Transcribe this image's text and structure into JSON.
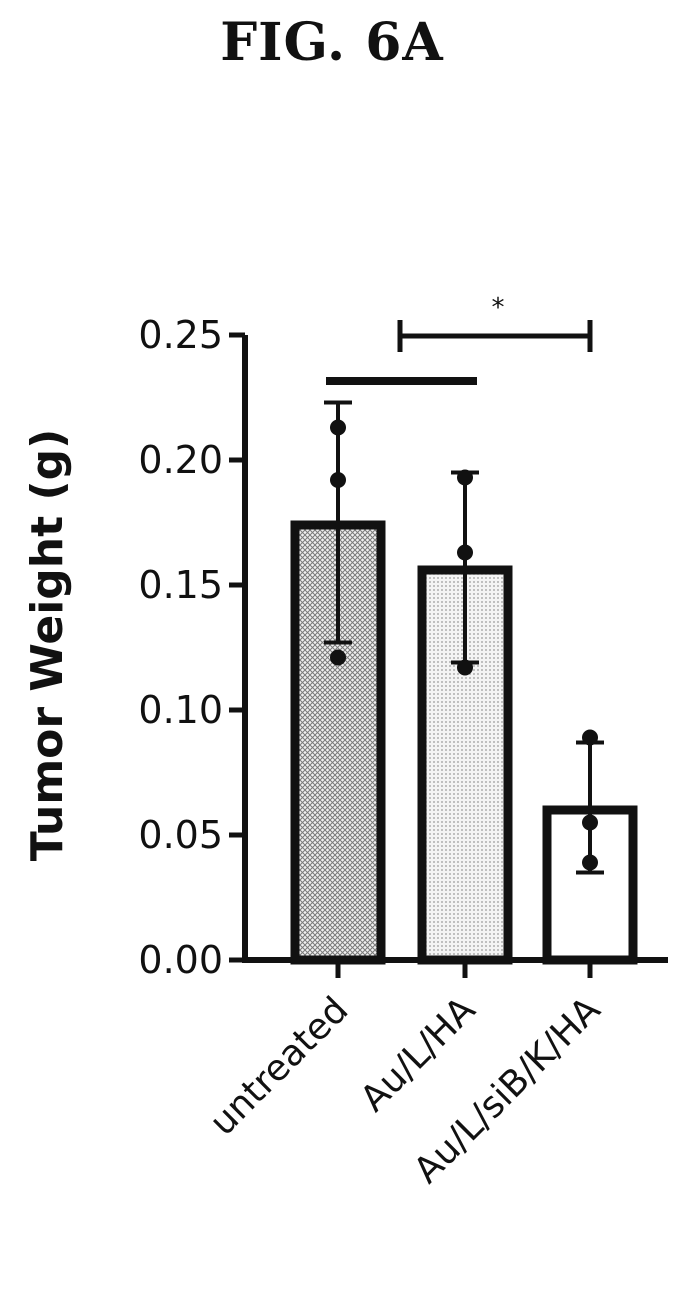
{
  "figure": {
    "title": "FIG. 6A"
  },
  "chart_data": {
    "type": "bar",
    "title": "",
    "xlabel": "",
    "ylabel": "Tumor Weight (g)",
    "ylim": [
      0,
      0.25
    ],
    "yticks": [
      "0.00",
      "0.05",
      "0.10",
      "0.15",
      "0.20",
      "0.25"
    ],
    "grid": false,
    "legend": "none",
    "categories": [
      "untreated",
      "Au/L/HA",
      "Au/L/siB/K/HA"
    ],
    "values": [
      0.174,
      0.156,
      0.06
    ],
    "error": [
      {
        "low": 0.127,
        "high": 0.223
      },
      {
        "low": 0.119,
        "high": 0.195
      },
      {
        "low": 0.035,
        "high": 0.087
      }
    ],
    "points": [
      [
        0.213,
        0.192,
        0.121
      ],
      [
        0.193,
        0.163,
        0.117
      ],
      [
        0.089,
        0.055,
        0.039
      ]
    ],
    "fills": [
      "crosshatch-dense",
      "dotted-light",
      "none"
    ],
    "bar_outline_color": "#111111",
    "annotations": [
      {
        "type": "significance",
        "from": "Au/L/HA",
        "to": "Au/L/siB/K/HA",
        "label": "*"
      },
      {
        "type": "line",
        "from": "untreated",
        "to": "Au/L/HA",
        "label": ""
      }
    ]
  }
}
